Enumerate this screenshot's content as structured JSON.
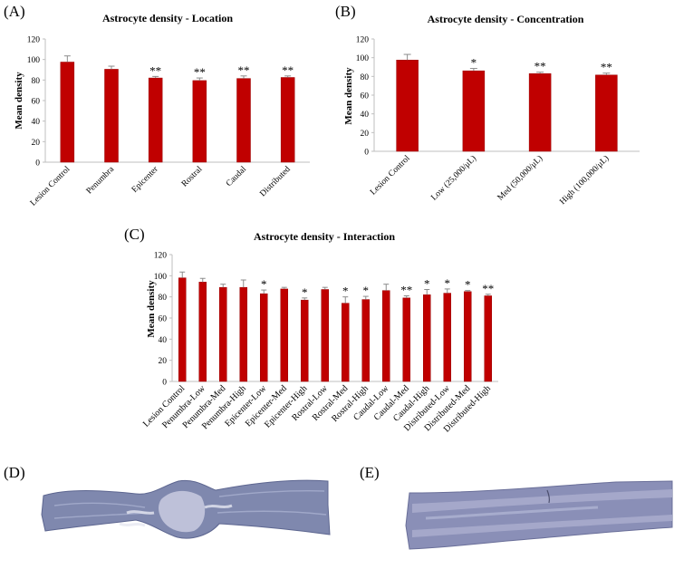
{
  "colors": {
    "bar": "#c00000",
    "bar_edge": "#9a0000",
    "errorbar": "#8c8c8c",
    "axis": "#bfbfbf",
    "tissue": "#7d86ad"
  },
  "chart_data": [
    {
      "panel": "(A)",
      "type": "bar",
      "title": "Astrocyte density - Location",
      "ylabel": "Mean density",
      "xlabel": "",
      "ylim": [
        0,
        120
      ],
      "yticks": [
        0,
        20,
        40,
        60,
        80,
        100,
        120
      ],
      "grid": false,
      "categories": [
        "Lesion Control",
        "Penumbra",
        "Epicenter",
        "Rostral",
        "Caudal",
        "Distributed"
      ],
      "values": [
        97.5,
        90.5,
        82,
        79.5,
        81.5,
        82.5
      ],
      "errors": [
        6,
        3,
        1.5,
        2.5,
        2.5,
        1.5
      ],
      "significance": [
        "",
        "",
        "**",
        "**",
        "**",
        "**"
      ]
    },
    {
      "panel": "(B)",
      "type": "bar",
      "title": "Astrocyte density - Concentration",
      "ylabel": "Mean density",
      "xlabel": "",
      "ylim": [
        0,
        120
      ],
      "yticks": [
        0,
        20,
        40,
        60,
        80,
        100,
        120
      ],
      "grid": false,
      "categories": [
        "Lesion Control",
        "Low (25,000/μL)",
        "Med (50,000/μL)",
        "High (100,000/μL)"
      ],
      "values": [
        97.5,
        86,
        83,
        81.5
      ],
      "errors": [
        6,
        2.5,
        1.5,
        2
      ],
      "significance": [
        "",
        "*",
        "**",
        "**"
      ]
    },
    {
      "panel": "(C)",
      "type": "bar",
      "title": "Astrocyte density - Interaction",
      "ylabel": "Mean density",
      "xlabel": "",
      "ylim": [
        0,
        120
      ],
      "yticks": [
        0,
        20,
        40,
        60,
        80,
        100,
        120
      ],
      "grid": false,
      "categories": [
        "Lesion Control",
        "Penumbra-Low",
        "Penumbra-Med",
        "Penumbra-High",
        "Epicenter-Low",
        "Epicenter-Med",
        "Epicenter-High",
        "Rostral-Low",
        "Rostral-Med",
        "Rostral-High",
        "Caudal-Low",
        "Caudal-Med",
        "Caudal-High",
        "Distributed-Low",
        "Distributed-Med",
        "Distributed-High"
      ],
      "values": [
        98,
        94,
        89,
        89,
        83,
        87.5,
        77,
        87,
        74,
        77.5,
        86,
        79,
        82,
        83.5,
        85,
        81
      ],
      "errors": [
        5.5,
        3.5,
        3,
        7,
        3.5,
        1.5,
        2,
        2,
        6,
        3,
        6,
        2,
        5,
        4,
        1,
        1.5
      ],
      "significance": [
        "",
        "",
        "",
        "",
        "*",
        "",
        "*",
        "",
        "*",
        "*",
        "",
        "**",
        "*",
        "*",
        "*",
        "**"
      ]
    }
  ],
  "panels": {
    "d": "(D)",
    "e": "(E)"
  }
}
